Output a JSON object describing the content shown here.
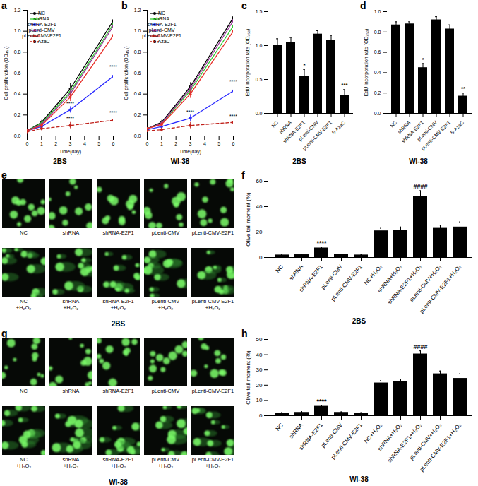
{
  "chart_data": [
    {
      "panel_label": "a",
      "type": "line",
      "caption": "2BS",
      "x_label": "Time(day)",
      "y_label": "Cell proliferation (OD₄₅₀)",
      "x": [
        0,
        1,
        3,
        6
      ],
      "xlim": [
        0,
        6
      ],
      "xticks": [
        0,
        1,
        2,
        3,
        4,
        5,
        6
      ],
      "ylim": [
        0,
        1.2
      ],
      "yticks": [
        {
          "value": 0,
          "label": "0.0"
        },
        0.2,
        0.4,
        0.6,
        0.8,
        {
          "value": 1,
          "label": "1.0"
        },
        1.2
      ],
      "legend": "top-left",
      "marker": "circle",
      "series": [
        {
          "name": "NC",
          "color": "#000000",
          "values": [
            0.05,
            0.13,
            0.45,
            1.1
          ],
          "errors": [
            0.01,
            0.02,
            0.05,
            0.06
          ]
        },
        {
          "name": "shRNA",
          "color": "#33cc33",
          "values": [
            0.05,
            0.12,
            0.42,
            1.07
          ],
          "errors": [
            0.01,
            0.02,
            0.04,
            0.05
          ]
        },
        {
          "name": "shRNA-E2F1",
          "color": "#2b2bff",
          "values": [
            0.05,
            0.09,
            0.25,
            0.57
          ],
          "errors": [
            0.01,
            0.02,
            0.03,
            0.07
          ]
        },
        {
          "name": "pLenti-CMV",
          "color": "#993399",
          "values": [
            0.05,
            0.11,
            0.4,
            1.05
          ],
          "errors": [
            0.01,
            0.02,
            0.05,
            0.06
          ]
        },
        {
          "name": "pLenti-CMV-E2F1",
          "color": "#e8302a",
          "values": [
            0.05,
            0.1,
            0.37,
            0.96
          ],
          "errors": [
            0.01,
            0.02,
            0.04,
            0.08
          ]
        },
        {
          "name": "5-AzaC",
          "color": "#c0201a",
          "line_style": "dashed",
          "values": [
            0.04,
            0.07,
            0.1,
            0.15
          ],
          "errors": [
            0.01,
            0.02,
            0.03,
            0.05
          ]
        }
      ],
      "annotations": [
        {
          "x": 3,
          "y": 0.31,
          "text": "****"
        },
        {
          "x": 3,
          "y": 0.17,
          "text": "****"
        },
        {
          "x": 6,
          "y": 0.66,
          "text": "****"
        },
        {
          "x": 6,
          "y": 0.22,
          "text": "****"
        }
      ]
    },
    {
      "panel_label": "b",
      "type": "line",
      "caption": "WI-38",
      "x_label": "Time(day)",
      "y_label": "Cell proliferation (OD₄₅₀)",
      "x": [
        0,
        1,
        3,
        6
      ],
      "xlim": [
        0,
        6
      ],
      "xticks": [
        0,
        1,
        2,
        3,
        4,
        5,
        6
      ],
      "ylim": [
        0,
        1.2
      ],
      "yticks": [
        {
          "value": 0,
          "label": "0.0"
        },
        0.2,
        0.4,
        0.6,
        0.8,
        {
          "value": 1,
          "label": "1.0"
        },
        1.2
      ],
      "legend": "top-left",
      "marker": "circle",
      "series": [
        {
          "name": "NC",
          "color": "#000000",
          "values": [
            0.07,
            0.13,
            0.47,
            1.13
          ],
          "errors": [
            0.01,
            0.02,
            0.04,
            0.05
          ]
        },
        {
          "name": "shRNA",
          "color": "#33cc33",
          "values": [
            0.07,
            0.12,
            0.43,
            1.05
          ],
          "errors": [
            0.01,
            0.02,
            0.04,
            0.05
          ]
        },
        {
          "name": "shRNA-E2F1",
          "color": "#2b2bff",
          "values": [
            0.06,
            0.09,
            0.17,
            0.43
          ],
          "errors": [
            0.01,
            0.02,
            0.03,
            0.06
          ]
        },
        {
          "name": "pLenti-CMV",
          "color": "#993399",
          "values": [
            0.07,
            0.12,
            0.45,
            1.1
          ],
          "errors": [
            0.01,
            0.02,
            0.04,
            0.05
          ]
        },
        {
          "name": "pLenti-CMV-E2F1",
          "color": "#e8302a",
          "values": [
            0.07,
            0.11,
            0.4,
            1.0
          ],
          "errors": [
            0.01,
            0.02,
            0.04,
            0.06
          ]
        },
        {
          "name": "5-AzaC",
          "color": "#c0201a",
          "line_style": "dashed",
          "values": [
            0.05,
            0.06,
            0.1,
            0.13
          ],
          "errors": [
            0.01,
            0.02,
            0.03,
            0.04
          ]
        }
      ],
      "annotations": [
        {
          "x": 3,
          "y": 0.23,
          "text": "****"
        },
        {
          "x": 6,
          "y": 0.52,
          "text": "****"
        },
        {
          "x": 6,
          "y": 0.19,
          "text": "****"
        }
      ]
    },
    {
      "panel_label": "c",
      "type": "bar",
      "caption": "2BS",
      "y_label": "EdU incorporation rate (OD₄₅₀)",
      "categories": [
        "NC",
        "shRNA",
        "shRNA-E2F1",
        "pLenti-CMV",
        "pLenti-CMV-E2F1",
        "5-AzaC"
      ],
      "values": [
        1.0,
        1.05,
        0.55,
        1.17,
        1.08,
        0.27
      ],
      "errors": [
        0.1,
        0.07,
        0.1,
        0.05,
        0.07,
        0.08
      ],
      "significance": [
        null,
        null,
        "*",
        null,
        null,
        "***"
      ],
      "color": "#000000",
      "ylim": [
        0,
        1.5
      ],
      "yticks": [
        {
          "value": 0,
          "label": "0.0"
        },
        0.5,
        {
          "value": 1,
          "label": "1.0"
        },
        1.5
      ]
    },
    {
      "panel_label": "d",
      "type": "bar",
      "caption": "WI-38",
      "y_label": "EdU incorporation rate (OD₄₅₀)",
      "categories": [
        "NC",
        "shRNA",
        "shRNA-E2F1",
        "pLenti-CMV",
        "pLenti-CMV-E2F1",
        "5-AzaC"
      ],
      "values": [
        0.87,
        0.88,
        0.45,
        0.92,
        0.83,
        0.17
      ],
      "errors": [
        0.03,
        0.02,
        0.04,
        0.03,
        0.04,
        0.03
      ],
      "significance": [
        null,
        null,
        "*",
        null,
        null,
        "**"
      ],
      "color": "#000000",
      "ylim": [
        0,
        1.0
      ],
      "yticks": [
        {
          "value": 0,
          "label": "0.0"
        },
        0.2,
        0.4,
        0.6,
        0.8,
        {
          "value": 1,
          "label": "1.0"
        }
      ]
    },
    {
      "panel_label": "e",
      "type": "image_grid",
      "caption": "2BS",
      "labels": [
        "NC",
        "shRNA",
        "shRNA-E2F1",
        "pLenti-CMV",
        "pLenti-CMV-E2F1",
        "NC\n+H₂O₂",
        "shRNA\n+H₂O₂",
        "shRNA-E2F1\n+H₂O₂",
        "pLenti-CMV\n+H₂O₂",
        "pLenti-CMV-E2F1\n+H₂O₂"
      ]
    },
    {
      "panel_label": "f",
      "type": "bar",
      "caption": "2BS",
      "y_label": "Olive tail moment (%)",
      "categories": [
        "NC",
        "shRNA",
        "shRNA-E2F1",
        "pLenti-CMV",
        "pLenti-CMV-E2F1",
        "NC+H₂O₂",
        "shRNA+H₂O₂",
        "shRNA-E2F1+H₂O₂",
        "pLenti-CMV+H₂O₂",
        "pLenti-CMV-E2F1+H₂O₂"
      ],
      "values": [
        2.0,
        2.2,
        7.5,
        2.3,
        2.0,
        21.0,
        21.5,
        48.0,
        23.0,
        24.0
      ],
      "errors": [
        0.3,
        0.4,
        0.5,
        0.4,
        0.5,
        2.0,
        2.5,
        4.5,
        2.5,
        4.0
      ],
      "significance": [
        null,
        null,
        "****",
        null,
        null,
        null,
        null,
        "####",
        null,
        null
      ],
      "color": "#000000",
      "ylim": [
        0,
        60
      ],
      "yticks": [
        0,
        20,
        40,
        60
      ]
    },
    {
      "panel_label": "g",
      "type": "image_grid",
      "caption": "WI-38",
      "labels": [
        "NC",
        "shRNA",
        "shRNA-E2F1",
        "pLenti-CMV",
        "pLenti-CMV-E2F1",
        "NC\n+H₂O₂",
        "shRNA\n+H₂O₂",
        "shRNA-E2F1\n+H₂O₂",
        "pLenti-CMV\n+H₂O₂",
        "pLenti-CMV-E2F1\n+H₂O₂"
      ]
    },
    {
      "panel_label": "h",
      "type": "bar",
      "caption": "WI-38",
      "y_label": "Olive tail moment (%)",
      "categories": [
        "NC",
        "shRNA",
        "shRNA-E2F1",
        "pLenti-CMV",
        "pLenti-CMV-E2F1",
        "NC+H₂O₂",
        "shRNA+H₂O₂",
        "shRNA-E2F1+H₂O₂",
        "pLenti-CMV+H₂O₂",
        "pLenti-CMV-E2F1+H₂O₂"
      ],
      "values": [
        1.8,
        2.2,
        6.2,
        2.2,
        1.8,
        21.5,
        22.5,
        40.5,
        27.5,
        24.5
      ],
      "errors": [
        0.3,
        0.5,
        0.5,
        0.3,
        0.2,
        1.5,
        1.5,
        2.0,
        1.8,
        3.0
      ],
      "significance": [
        null,
        null,
        "****",
        null,
        null,
        null,
        null,
        "####",
        null,
        null
      ],
      "color": "#000000",
      "ylim": [
        0,
        50
      ],
      "yticks": [
        0,
        10,
        20,
        30,
        40,
        50
      ]
    }
  ]
}
